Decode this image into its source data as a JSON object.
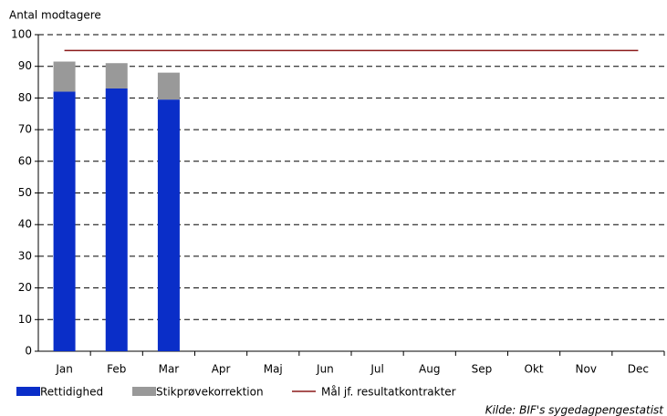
{
  "chart_data": {
    "type": "stacked-bar-line",
    "y_axis_label": "Antal modtagere",
    "source": "Kilde: BIF's sygedagpengestatist",
    "categories": [
      "Jan",
      "Feb",
      "Mar",
      "Apr",
      "Maj",
      "Jun",
      "Jul",
      "Aug",
      "Sep",
      "Okt",
      "Nov",
      "Dec"
    ],
    "series": [
      {
        "name": "Rettidighed",
        "color": "#0a2ec8",
        "kind": "bar",
        "values": [
          82,
          83,
          79.5,
          null,
          null,
          null,
          null,
          null,
          null,
          null,
          null,
          null
        ]
      },
      {
        "name": "Stikprøvekorrektion",
        "color": "#999999",
        "kind": "bar",
        "values": [
          9.5,
          8,
          8.5,
          null,
          null,
          null,
          null,
          null,
          null,
          null,
          null,
          null
        ]
      },
      {
        "name": "Mål jf. resultatkontrakter",
        "color": "#8b1a1a",
        "kind": "line",
        "values": [
          95,
          95,
          95,
          95,
          95,
          95,
          95,
          95,
          95,
          95,
          95,
          95
        ]
      }
    ],
    "ylim": [
      0,
      100
    ],
    "yticks": [
      0,
      10,
      20,
      30,
      40,
      50,
      60,
      70,
      80,
      90,
      100
    ],
    "grid": true
  }
}
